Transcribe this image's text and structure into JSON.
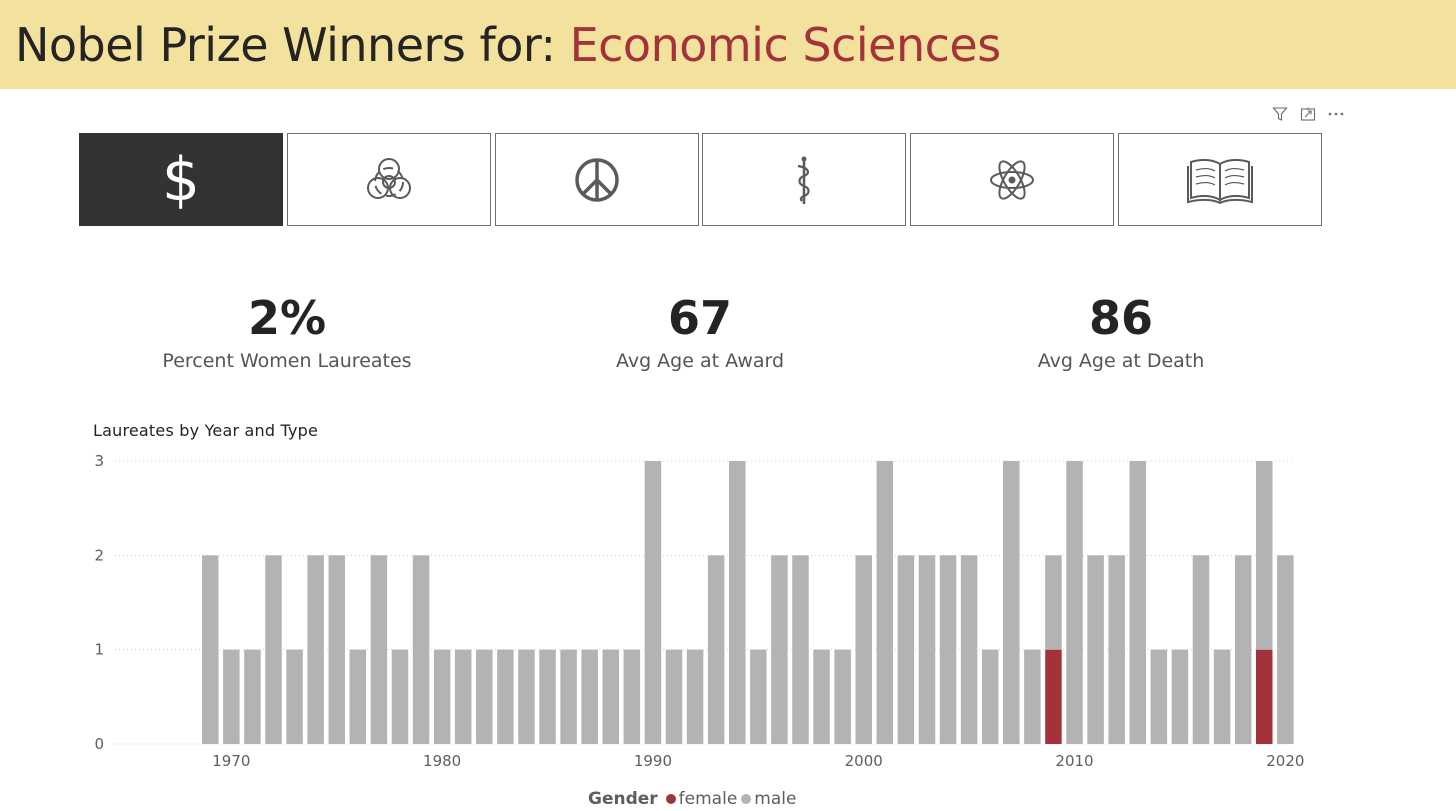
{
  "header": {
    "prefix": "Nobel Prize Winners for: ",
    "category": "Economic Sciences",
    "accent_color": "#a4323b",
    "background_color": "#f2e29e"
  },
  "visual_tools": [
    {
      "icon": "filter-icon"
    },
    {
      "icon": "focus-mode-icon"
    },
    {
      "icon": "more-options-icon"
    }
  ],
  "category_buttons": [
    {
      "id": "economics",
      "icon": "dollar-icon",
      "glyph": "$",
      "active": true
    },
    {
      "id": "chemistry",
      "icon": "biohazard-icon",
      "glyph": "☣",
      "active": false
    },
    {
      "id": "peace",
      "icon": "peace-icon",
      "glyph": "☮",
      "active": false
    },
    {
      "id": "medicine",
      "icon": "caduceus-icon",
      "glyph": "⚕",
      "active": false
    },
    {
      "id": "physics",
      "icon": "atom-icon",
      "glyph": "⚛",
      "active": false
    },
    {
      "id": "literature",
      "icon": "book-icon",
      "glyph": "📖",
      "active": false
    }
  ],
  "kpis": [
    {
      "value": "2%",
      "label": "Percent Women Laureates"
    },
    {
      "value": "67",
      "label": "Avg Age at Award"
    },
    {
      "value": "86",
      "label": "Avg Age at Death"
    }
  ],
  "chart_title": "Laureates by Year and Type",
  "legend": {
    "title": "Gender",
    "items": [
      {
        "label": "female",
        "color": "#a4323b"
      },
      {
        "label": "male",
        "color": "#b3b3b3"
      }
    ]
  },
  "chart_data": {
    "type": "bar",
    "stacked": true,
    "title": "Laureates by Year and Type",
    "xlabel": "",
    "ylabel": "",
    "ylim": [
      0,
      3
    ],
    "yticks": [
      0,
      1,
      2,
      3
    ],
    "xticks": [
      1970,
      1980,
      1990,
      2000,
      2010,
      2020
    ],
    "grid": true,
    "legend_position": "bottom-center",
    "x": [
      1969,
      1970,
      1971,
      1972,
      1973,
      1974,
      1975,
      1976,
      1977,
      1978,
      1979,
      1980,
      1981,
      1982,
      1983,
      1984,
      1985,
      1986,
      1987,
      1988,
      1989,
      1990,
      1991,
      1992,
      1993,
      1994,
      1995,
      1996,
      1997,
      1998,
      1999,
      2000,
      2001,
      2002,
      2003,
      2004,
      2005,
      2006,
      2007,
      2008,
      2009,
      2010,
      2011,
      2012,
      2013,
      2014,
      2015,
      2016,
      2017,
      2018,
      2019,
      2020
    ],
    "series": [
      {
        "name": "female",
        "color": "#a4323b",
        "values": [
          0,
          0,
          0,
          0,
          0,
          0,
          0,
          0,
          0,
          0,
          0,
          0,
          0,
          0,
          0,
          0,
          0,
          0,
          0,
          0,
          0,
          0,
          0,
          0,
          0,
          0,
          0,
          0,
          0,
          0,
          0,
          0,
          0,
          0,
          0,
          0,
          0,
          0,
          0,
          0,
          1,
          0,
          0,
          0,
          0,
          0,
          0,
          0,
          0,
          0,
          1,
          0
        ]
      },
      {
        "name": "male",
        "color": "#b3b3b3",
        "values": [
          2,
          1,
          1,
          2,
          1,
          2,
          2,
          1,
          2,
          1,
          2,
          1,
          1,
          1,
          1,
          1,
          1,
          1,
          1,
          1,
          1,
          3,
          1,
          1,
          2,
          3,
          1,
          2,
          2,
          1,
          1,
          2,
          3,
          2,
          2,
          2,
          2,
          1,
          3,
          1,
          1,
          3,
          2,
          2,
          3,
          1,
          1,
          2,
          1,
          2,
          2,
          2
        ]
      }
    ]
  }
}
